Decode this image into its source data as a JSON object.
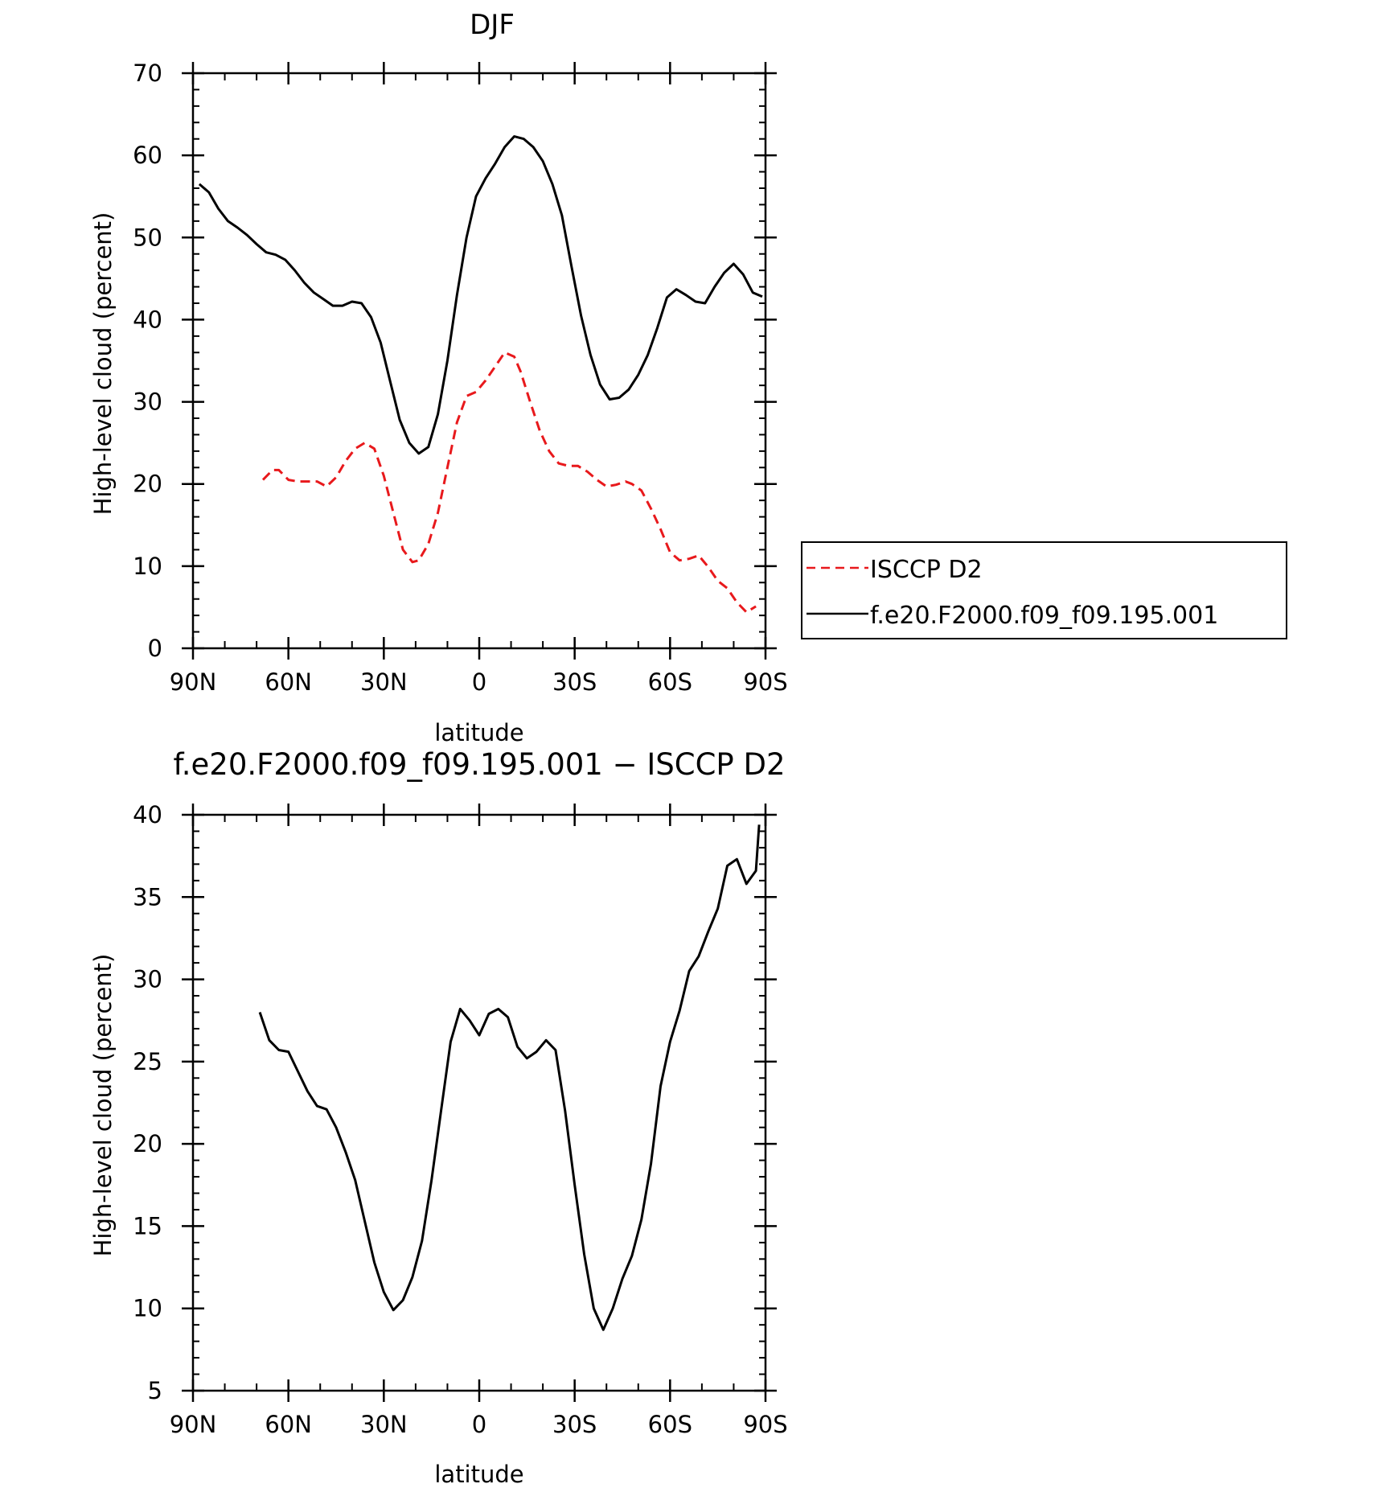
{
  "chart_data": [
    {
      "type": "line",
      "title": "DJF",
      "xlabel": "latitude",
      "ylabel": "High-level cloud (percent)",
      "xlim": [
        90,
        -90
      ],
      "ylim": [
        0,
        70
      ],
      "x_tick_values": [
        90,
        60,
        30,
        0,
        -30,
        -60,
        -90
      ],
      "x_tick_labels": [
        "90N",
        "60N",
        "30N",
        "0",
        "30S",
        "60S",
        "90S"
      ],
      "y_ticks": [
        0,
        10,
        20,
        30,
        40,
        50,
        60,
        70
      ],
      "grid": false,
      "legend_position": "right",
      "series": [
        {
          "name": "ISCCP D2",
          "color": "#e8191c",
          "dash": "dashed",
          "x": [
            68,
            65,
            63,
            60,
            57,
            54,
            51,
            48,
            45,
            42,
            39,
            36,
            33,
            30,
            27,
            24,
            21,
            19,
            16,
            13,
            10,
            7,
            4,
            1,
            -2,
            -5,
            -8,
            -11,
            -13,
            -16,
            -19,
            -22,
            -25,
            -28,
            -31,
            -34,
            -37,
            -40,
            -43,
            -46,
            -48,
            -51,
            -54,
            -57,
            -60,
            -63,
            -66,
            -69,
            -72,
            -75,
            -78,
            -81,
            -84,
            -87
          ],
          "y": [
            20.5,
            21.7,
            21.7,
            20.5,
            20.3,
            20.3,
            20.3,
            19.7,
            20.8,
            22.8,
            24.3,
            25,
            24.3,
            21,
            16.5,
            12,
            10.5,
            10.7,
            12.7,
            16.5,
            22,
            27.5,
            30.7,
            31.2,
            32.6,
            34.3,
            36,
            35.5,
            33.7,
            30,
            26.5,
            24,
            22.5,
            22.2,
            22.2,
            21.5,
            20.5,
            19.7,
            19.9,
            20.3,
            20,
            19.2,
            17,
            14.5,
            11.7,
            10.7,
            10.9,
            11.3,
            9.9,
            8.2,
            7.3,
            5.6,
            4.4,
            5.1
          ]
        },
        {
          "name": "f.e20.F2000.f09_f09.195.001",
          "color": "#000000",
          "dash": "solid",
          "x": [
            88,
            85,
            82,
            79,
            76,
            73,
            70,
            67,
            64,
            61,
            58,
            55,
            52,
            49,
            46,
            43,
            40,
            37,
            34,
            31,
            28,
            25,
            22,
            19,
            16,
            13,
            10,
            7,
            4,
            1,
            -2,
            -5,
            -8,
            -11,
            -14,
            -17,
            -20,
            -23,
            -26,
            -29,
            -32,
            -35,
            -38,
            -41,
            -44,
            -47,
            -50,
            -53,
            -56,
            -59,
            -62,
            -65,
            -68,
            -71,
            -74,
            -77,
            -80,
            -83,
            -86,
            -89
          ],
          "y": [
            56.5,
            55.5,
            53.5,
            52,
            51.2,
            50.3,
            49.2,
            48.2,
            47.9,
            47.3,
            46,
            44.5,
            43.3,
            42.5,
            41.7,
            41.7,
            42.2,
            42,
            40.3,
            37.2,
            32.5,
            27.8,
            25,
            23.7,
            24.5,
            28.5,
            35,
            43,
            50,
            55,
            57.2,
            59,
            61,
            62.3,
            62,
            61,
            59.3,
            56.5,
            52.7,
            46.5,
            40.5,
            35.7,
            32.1,
            30.3,
            30.5,
            31.5,
            33.3,
            35.7,
            39,
            42.7,
            43.7,
            43,
            42.2,
            42,
            44,
            45.7,
            46.8,
            45.5,
            43.3,
            42.8
          ]
        }
      ]
    },
    {
      "type": "line",
      "title": "f.e20.F2000.f09_f09.195.001 − ISCCP D2",
      "xlabel": "latitude",
      "ylabel": "High-level cloud (percent)",
      "xlim": [
        90,
        -90
      ],
      "ylim": [
        5,
        40
      ],
      "x_tick_values": [
        90,
        60,
        30,
        0,
        -30,
        -60,
        -90
      ],
      "x_tick_labels": [
        "90N",
        "60N",
        "30N",
        "0",
        "30S",
        "60S",
        "90S"
      ],
      "y_ticks": [
        5,
        10,
        15,
        20,
        25,
        30,
        35,
        40
      ],
      "grid": false,
      "series": [
        {
          "color": "#000000",
          "dash": "solid",
          "x": [
            69,
            66,
            63,
            60,
            57,
            54,
            51,
            48,
            45,
            42,
            39,
            36,
            33,
            30,
            27,
            24,
            21,
            18,
            15,
            12,
            9,
            6,
            3,
            0,
            -3,
            -6,
            -9,
            -12,
            -15,
            -18,
            -21,
            -24,
            -27,
            -30,
            -33,
            -36,
            -39,
            -42,
            -45,
            -48,
            -51,
            -54,
            -57,
            -60,
            -63,
            -66,
            -69,
            -72,
            -75,
            -78,
            -81,
            -84,
            -87,
            -88
          ],
          "y": [
            28,
            26.3,
            25.7,
            25.6,
            24.4,
            23.2,
            22.3,
            22.1,
            21,
            19.5,
            17.8,
            15.3,
            12.8,
            11,
            9.9,
            10.5,
            11.9,
            14.1,
            17.8,
            22,
            26.2,
            28.2,
            27.5,
            26.6,
            27.9,
            28.2,
            27.7,
            25.9,
            25.2,
            25.6,
            26.3,
            25.7,
            22,
            17.5,
            13.3,
            10,
            8.7,
            10,
            11.8,
            13.2,
            15.4,
            18.8,
            23.5,
            26.2,
            28.1,
            30.5,
            31.4,
            32.9,
            34.3,
            36.9,
            37.3,
            35.8,
            36.6,
            39.4
          ]
        }
      ]
    }
  ]
}
